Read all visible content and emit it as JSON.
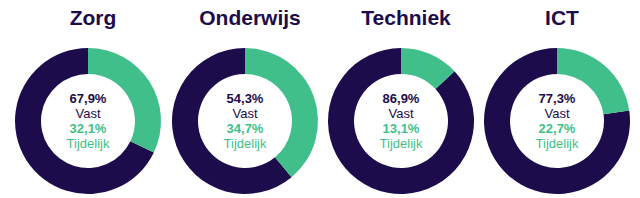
{
  "chart_data": [
    {
      "type": "pie",
      "title": "Zorg",
      "categories": [
        "Vast",
        "Tijdelijk"
      ],
      "values": [
        67.9,
        32.1
      ],
      "value_labels": [
        "67,9%",
        "32,1%"
      ],
      "colors": [
        "#1d0c4b",
        "#41bf8a"
      ],
      "data_labels": true
    },
    {
      "type": "pie",
      "title": "Onderwijs",
      "categories": [
        "Vast",
        "Tijdelijk"
      ],
      "values": [
        54.3,
        34.7
      ],
      "value_labels": [
        "54,3%",
        "34,7%"
      ],
      "colors": [
        "#1d0c4b",
        "#41bf8a"
      ],
      "data_labels": true
    },
    {
      "type": "pie",
      "title": "Techniek",
      "categories": [
        "Vast",
        "Tijdelijk"
      ],
      "values": [
        86.9,
        13.1
      ],
      "value_labels": [
        "86,9%",
        "13,1%"
      ],
      "colors": [
        "#1d0c4b",
        "#41bf8a"
      ],
      "data_labels": true
    },
    {
      "type": "pie",
      "title": "ICT",
      "categories": [
        "Vast",
        "Tijdelijk"
      ],
      "values": [
        77.3,
        22.7
      ],
      "value_labels": [
        "77,3%",
        "22,7%"
      ],
      "colors": [
        "#1d0c4b",
        "#41bf8a"
      ],
      "data_labels": true
    }
  ]
}
